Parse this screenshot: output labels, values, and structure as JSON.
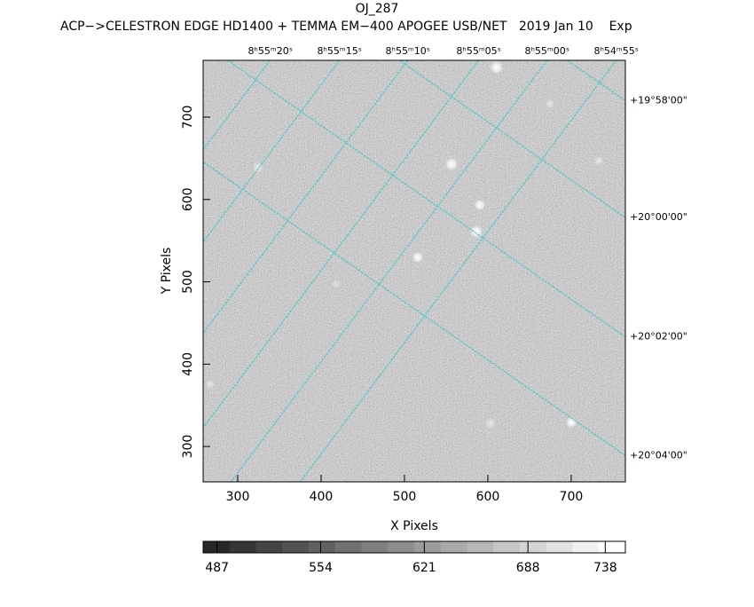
{
  "chart_data": {
    "type": "image",
    "title": "OJ_287",
    "subtitle": "ACP−>CELESTRON EDGE HD1400 + TEMMA EM−400 APOGEE USB/NET   2019 Jan 10    Exp",
    "x_label": "X Pixels",
    "y_label": "Y Pixels",
    "xlim": [
      258.5,
      765
    ],
    "ylim": [
      257,
      769
    ],
    "xticks": [
      300,
      400,
      500,
      600,
      700
    ],
    "yticks": [
      300,
      400,
      500,
      600,
      700
    ],
    "x2ticks": [
      {
        "value": 339,
        "label": "8ʰ55ᵐ20ˢ"
      },
      {
        "value": 422,
        "label": "8ʰ55ᵐ15ˢ"
      },
      {
        "value": 504,
        "label": "8ʰ55ᵐ10ˢ"
      },
      {
        "value": 589,
        "label": "8ʰ55ᵐ05ˢ"
      },
      {
        "value": 671,
        "label": "8ʰ55ᵐ00ˢ"
      },
      {
        "value": 754,
        "label": "8ʰ54ᵐ55ˢ"
      }
    ],
    "y2ticks": [
      {
        "value": 720,
        "label": "+19°58'00\""
      },
      {
        "value": 578,
        "label": "+20°00'00\""
      },
      {
        "value": 433,
        "label": "+20°02'00\""
      },
      {
        "value": 289,
        "label": "+20°04'00\""
      }
    ],
    "grid_color": "#4fc8c8",
    "colorbar": {
      "lim": [
        478,
        751
      ],
      "ticks": [
        487,
        554,
        621,
        688,
        738
      ]
    }
  }
}
